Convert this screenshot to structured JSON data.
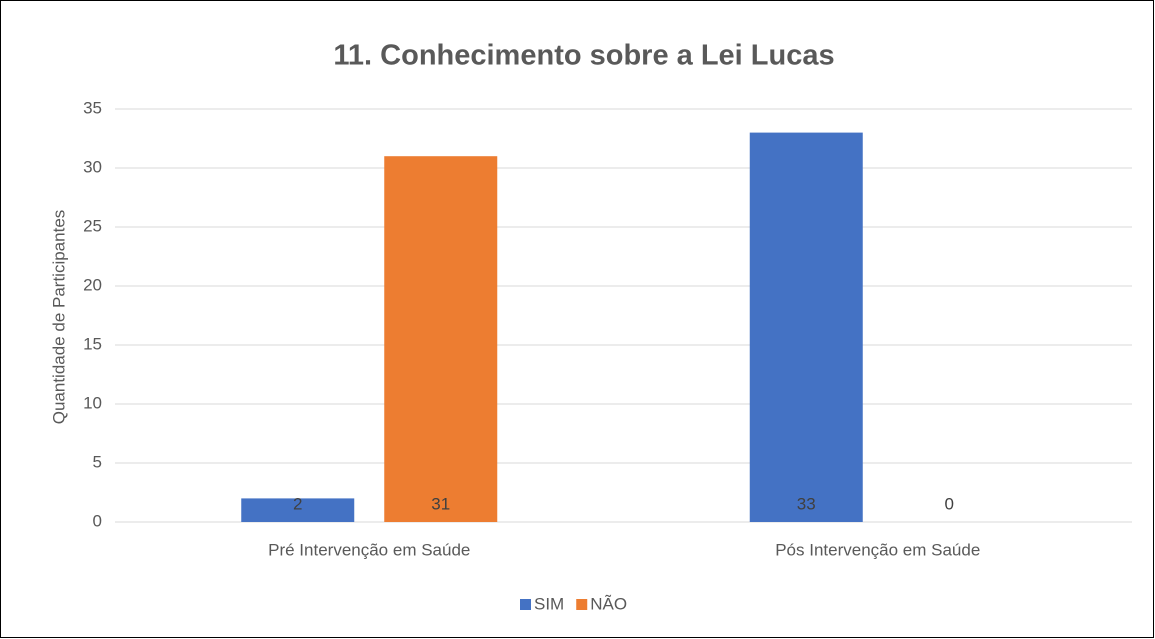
{
  "chart_data": {
    "type": "bar",
    "title": "11. Conhecimento sobre a Lei Lucas",
    "y_label": "Quantidade de Participantes",
    "categories": [
      "Pré Intervenção em Saúde",
      "Pós Intervenção em Saúde"
    ],
    "series": [
      {
        "name": "SIM",
        "color": "#4472c4",
        "values": [
          2,
          33
        ]
      },
      {
        "name": "NÃO",
        "color": "#ed7d31",
        "values": [
          31,
          0
        ]
      }
    ],
    "ylim": [
      0,
      35
    ],
    "yticks": [
      0,
      5,
      10,
      15,
      20,
      25,
      30,
      35
    ],
    "grid": true,
    "legend": "bottom"
  }
}
